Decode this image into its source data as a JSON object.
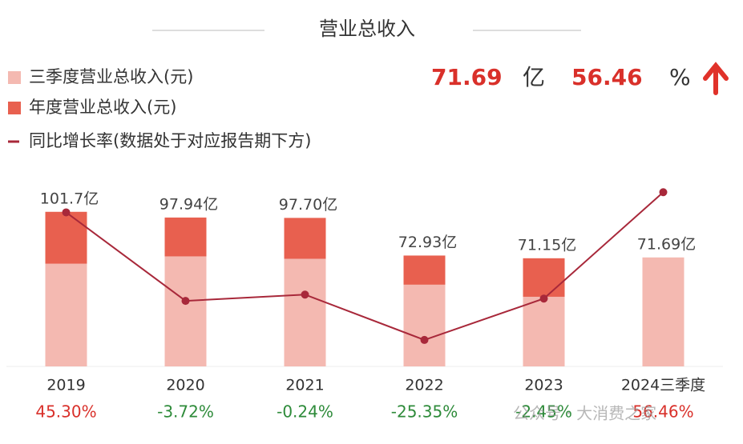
{
  "chart_data": {
    "type": "bar",
    "title": "营业总收入",
    "highlight": {
      "value": "71.69",
      "unit": "亿",
      "growth": "56.46",
      "growth_unit": "%"
    },
    "categories": [
      "2019",
      "2020",
      "2021",
      "2022",
      "2023",
      "2024三季度"
    ],
    "series": [
      {
        "name": "三季度营业总收入(元)",
        "color": "#f4b9b1",
        "values": [
          67.6,
          72.4,
          70.8,
          53.8,
          45.82,
          71.69
        ],
        "value_labels": [
          null,
          null,
          null,
          null,
          null,
          "71.69亿"
        ]
      },
      {
        "name": "年度营业总收入(元)",
        "color": "#e8604f",
        "values": [
          101.7,
          97.94,
          97.7,
          72.93,
          71.15,
          null
        ],
        "value_labels": [
          "101.7亿",
          "97.94亿",
          "97.70亿",
          "72.93亿",
          "71.15亿",
          null
        ]
      },
      {
        "name": "同比增长率(数据处于对应报告期下方)",
        "color": "#a8283a",
        "type": "line",
        "axis": "y2",
        "values": [
          45.3,
          -3.72,
          -0.24,
          -25.35,
          -2.45,
          56.46
        ],
        "value_labels": [
          "45.30%",
          "-3.72%",
          "-0.24%",
          "-25.35%",
          "-2.45%",
          "56.46%"
        ]
      }
    ],
    "ylim": [
      0,
      120
    ],
    "y2lim": [
      -40,
      61
    ],
    "watermark": "公众号 · 大消费之家"
  }
}
